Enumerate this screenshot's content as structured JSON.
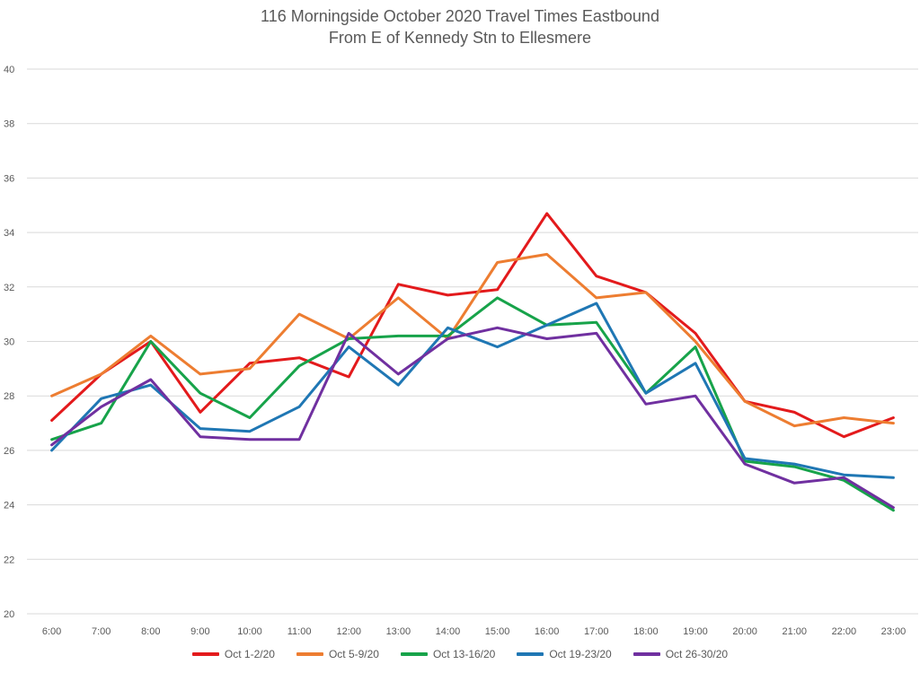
{
  "chart_data": {
    "type": "line",
    "title": "116 Morningside October 2020 Travel Times Eastbound",
    "subtitle": "From E of Kennedy Stn to Ellesmere",
    "xlabel": "",
    "ylabel": "",
    "ylim": [
      20,
      40
    ],
    "yticks": [
      "20",
      "22",
      "24",
      "26",
      "28",
      "30",
      "32",
      "34",
      "36",
      "38",
      "40"
    ],
    "grid": true,
    "legend_position": "bottom",
    "categories": [
      "6:00",
      "7:00",
      "8:00",
      "9:00",
      "10:00",
      "11:00",
      "12:00",
      "13:00",
      "14:00",
      "15:00",
      "16:00",
      "17:00",
      "18:00",
      "19:00",
      "20:00",
      "21:00",
      "22:00",
      "23:00"
    ],
    "series": [
      {
        "name": "Oct 1-2/20",
        "color": "#e31a1c",
        "values": [
          27.1,
          28.8,
          30.0,
          27.4,
          29.2,
          29.4,
          28.7,
          32.1,
          31.7,
          31.9,
          34.7,
          32.4,
          31.8,
          30.3,
          27.8,
          27.4,
          26.5,
          27.2
        ]
      },
      {
        "name": "Oct 5-9/20",
        "color": "#ed7d31",
        "values": [
          28.0,
          28.8,
          30.2,
          28.8,
          29.0,
          31.0,
          30.1,
          31.6,
          30.1,
          32.9,
          33.2,
          31.6,
          31.8,
          30.0,
          27.8,
          26.9,
          27.2,
          27.0
        ]
      },
      {
        "name": "Oct 13-16/20",
        "color": "#17a34a",
        "values": [
          26.4,
          27.0,
          30.0,
          28.1,
          27.2,
          29.1,
          30.1,
          30.2,
          30.2,
          31.6,
          30.6,
          30.7,
          28.1,
          29.8,
          25.6,
          25.4,
          24.9,
          23.8
        ]
      },
      {
        "name": "Oct 19-23/20",
        "color": "#1f77b4",
        "values": [
          26.0,
          27.9,
          28.4,
          26.8,
          26.7,
          27.6,
          29.8,
          28.4,
          30.5,
          29.8,
          30.6,
          31.4,
          28.1,
          29.2,
          25.7,
          25.5,
          25.1,
          25.0
        ]
      },
      {
        "name": "Oct 26-30/20",
        "color": "#7030a0",
        "values": [
          26.2,
          27.6,
          28.6,
          26.5,
          26.4,
          26.4,
          30.3,
          28.8,
          30.1,
          30.5,
          30.1,
          30.3,
          27.7,
          28.0,
          25.5,
          24.8,
          25.0,
          23.9
        ]
      }
    ]
  }
}
